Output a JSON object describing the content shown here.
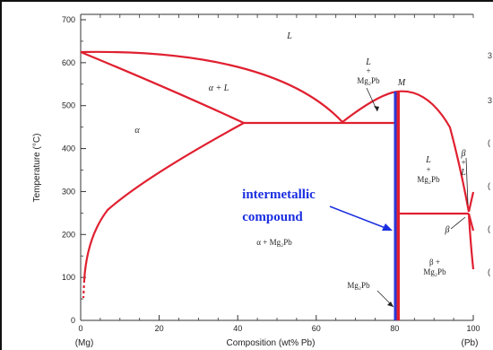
{
  "colors": {
    "phase_line": "#e02030",
    "compound_line": "#2a3ad8",
    "callout_text": "#1a2ee0",
    "axis": "#333333",
    "background": "#ffffff"
  },
  "axes": {
    "y_label": "Temperature (°C)",
    "x_label": "Composition (wt% Pb)",
    "x_left_label": "(Mg)",
    "x_right_label": "(Pb)",
    "x_ticks": [
      "0",
      "20",
      "40",
      "60",
      "80",
      "100"
    ],
    "y_ticks": [
      "0",
      "100",
      "200",
      "300",
      "400",
      "500",
      "600",
      "700"
    ],
    "x_range": [
      0,
      100
    ],
    "y_range": [
      0,
      700
    ]
  },
  "regions": {
    "liquid": "L",
    "alpha_plus_liquid": "α + L",
    "alpha": "α",
    "liquid_plus_compound_upper": [
      "L",
      "+",
      "Mg₂Pb"
    ],
    "point_m": "M",
    "liquid_plus_compound_right": [
      "L",
      "+",
      "Mg₂Pb"
    ],
    "beta_plus_liquid": [
      "β",
      "+",
      "L"
    ],
    "beta": "β",
    "alpha_plus_compound": "α  + Mg₂Pb",
    "beta_plus_compound": [
      "β +",
      "Mg₂Pb"
    ],
    "compound_bottom": "Mg₂Pb"
  },
  "callout": {
    "line1": "intermetallic",
    "line2": "compound"
  },
  "cut_off_labels": [
    "3",
    "3",
    "(",
    "(",
    "(",
    "("
  ],
  "diagram_data": {
    "alpha_melting_point": {
      "x": 0,
      "y": 645
    },
    "eutectic_left": {
      "x": 66,
      "y": 466,
      "alpha_solvus_end_x": 41
    },
    "compound_melting_point": {
      "x": 81,
      "y": 550
    },
    "eutectic_right": {
      "x": 97,
      "y": 250
    },
    "compound_composition": 81
  }
}
